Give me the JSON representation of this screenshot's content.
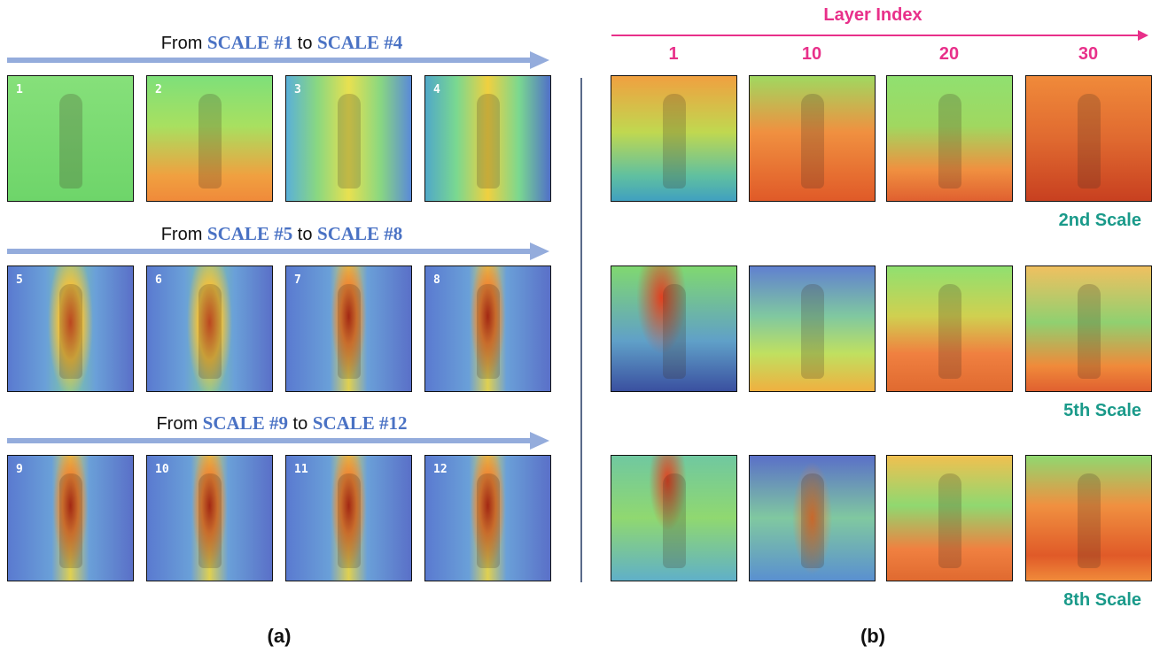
{
  "panel_a": {
    "rows": [
      {
        "prefix": "From",
        "start": "SCALE #1",
        "joiner": "to",
        "end": "SCALE #4",
        "tiles": [
          "1",
          "2",
          "3",
          "4"
        ]
      },
      {
        "prefix": "From",
        "start": "SCALE #5",
        "joiner": "to",
        "end": "SCALE #8",
        "tiles": [
          "5",
          "6",
          "7",
          "8"
        ]
      },
      {
        "prefix": "From",
        "start": "SCALE #9",
        "joiner": "to",
        "end": "SCALE #12",
        "tiles": [
          "9",
          "10",
          "11",
          "12"
        ]
      }
    ],
    "caption": "(a)"
  },
  "panel_b": {
    "axis_title": "Layer Index",
    "layers": [
      "1",
      "10",
      "20",
      "30"
    ],
    "rows": [
      "2nd Scale",
      "5th Scale",
      "8th Scale"
    ],
    "caption": "(b)"
  }
}
